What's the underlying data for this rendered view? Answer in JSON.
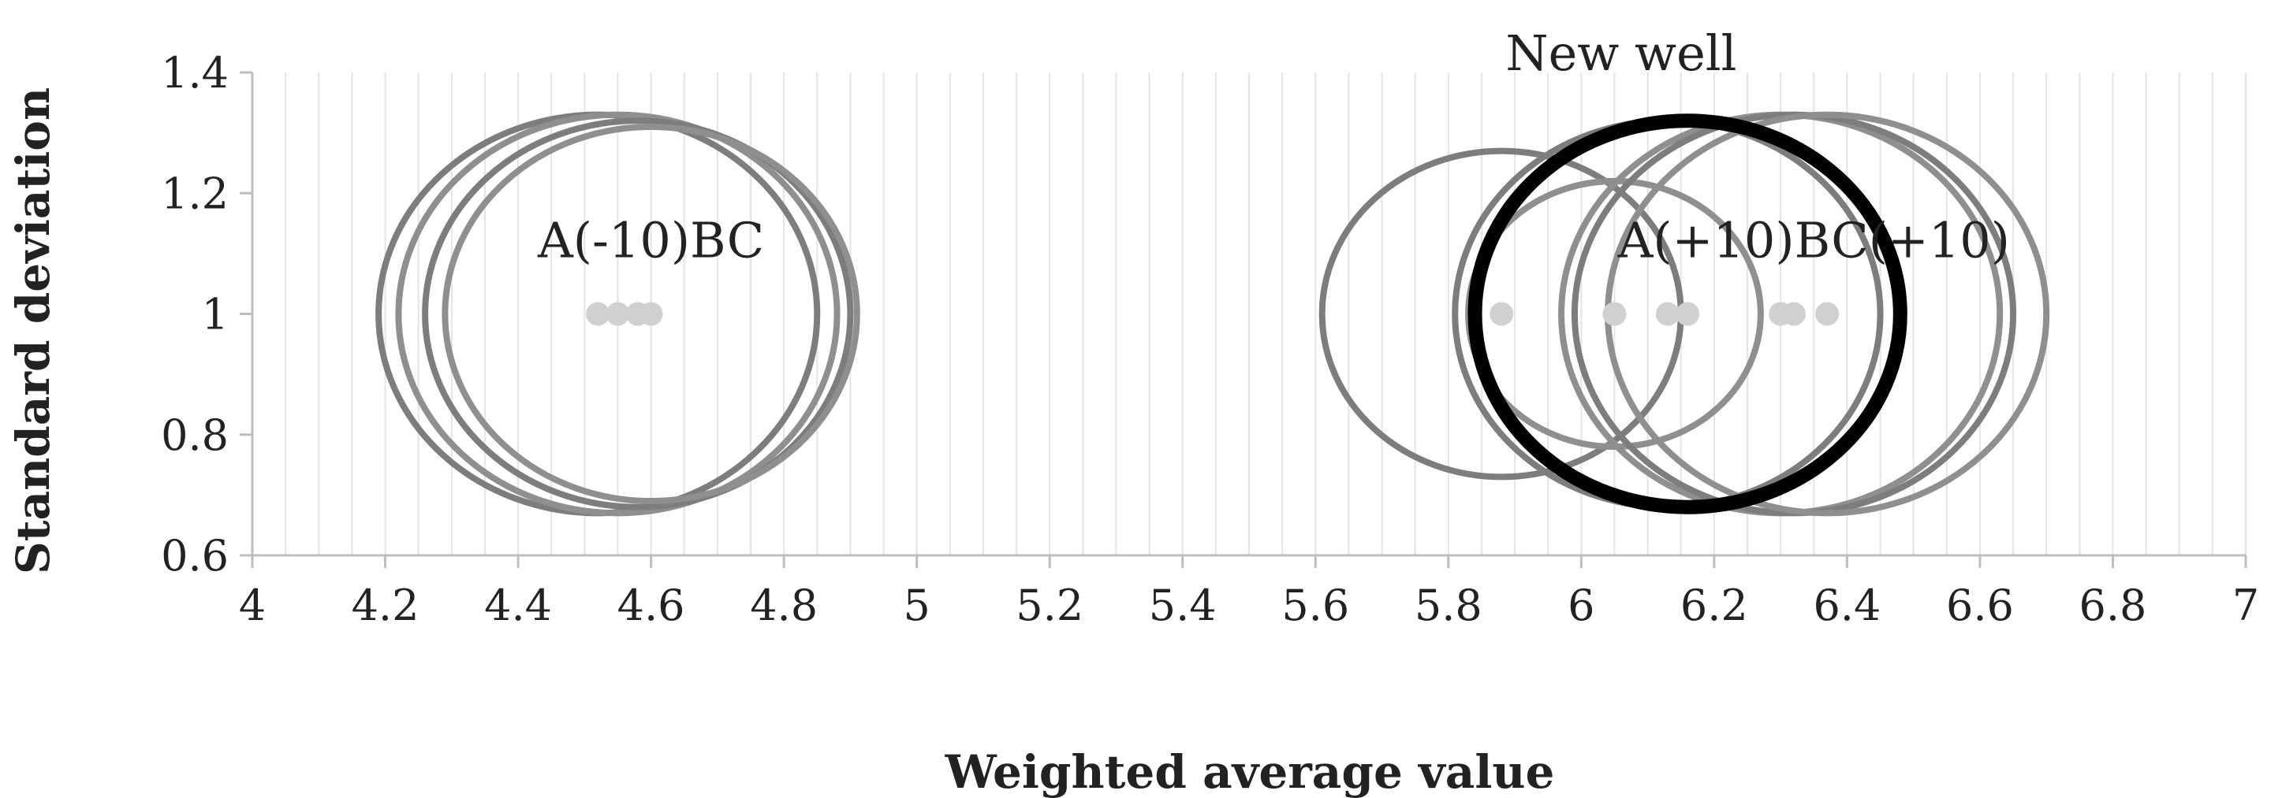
{
  "chart_data": {
    "type": "bubble",
    "xlabel": "Weighted average value",
    "ylabel": "Standard deviation",
    "xlim": [
      4,
      7
    ],
    "ylim": [
      0.6,
      1.4
    ],
    "x_ticks": [
      "4",
      "4.2",
      "4.4",
      "4.6",
      "4.8",
      "5",
      "5.2",
      "5.4",
      "5.6",
      "5.8",
      "6",
      "6.2",
      "6.4",
      "6.6",
      "6.8",
      "7"
    ],
    "y_ticks": [
      "0.6",
      "0.8",
      "1",
      "1.2",
      "1.4"
    ],
    "grid": "vertical",
    "points": [
      {
        "x": 4.52,
        "y": 1,
        "r": 0.33,
        "style": "gray"
      },
      {
        "x": 4.55,
        "y": 1,
        "r": 0.33,
        "style": "gray"
      },
      {
        "x": 4.58,
        "y": 1,
        "r": 0.32,
        "style": "gray"
      },
      {
        "x": 4.6,
        "y": 1,
        "r": 0.31,
        "style": "gray"
      },
      {
        "x": 5.88,
        "y": 1,
        "r": 0.27,
        "style": "gray"
      },
      {
        "x": 6.05,
        "y": 1,
        "r": 0.22,
        "style": "gray"
      },
      {
        "x": 6.13,
        "y": 1,
        "r": 0.32,
        "style": "gray"
      },
      {
        "x": 6.16,
        "y": 1,
        "r": 0.32,
        "style": "new"
      },
      {
        "x": 6.3,
        "y": 1,
        "r": 0.33,
        "style": "gray"
      },
      {
        "x": 6.32,
        "y": 1,
        "r": 0.33,
        "style": "gray"
      },
      {
        "x": 6.37,
        "y": 1,
        "r": 0.33,
        "style": "gray"
      }
    ],
    "annotations": [
      {
        "text": "A(-10)BC",
        "x": 4.6,
        "y": 1.12
      },
      {
        "text": "New well",
        "x": 6.06,
        "y": 1.43
      },
      {
        "text": "A(+10)BC(+10)",
        "x": 6.35,
        "y": 1.12
      }
    ]
  }
}
